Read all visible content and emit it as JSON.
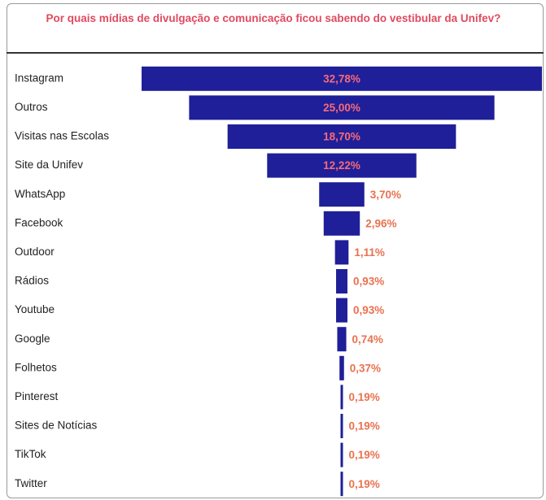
{
  "chart_data": {
    "type": "funnel",
    "title": "Por quais mídias de divulgação e comunicação ficou sabendo do vestibular da Unifev?",
    "categories": [
      "Instagram",
      "Outros",
      "Visitas nas Escolas",
      "Site da Unifev",
      "WhatsApp",
      "Facebook",
      "Outdoor",
      "Rádios",
      "Youtube",
      "Google",
      "Folhetos",
      "Pinterest",
      "Sites de Notícias",
      "TikTok",
      "Twitter"
    ],
    "values": [
      32.78,
      25.0,
      18.7,
      12.22,
      3.7,
      2.96,
      1.11,
      0.93,
      0.93,
      0.74,
      0.37,
      0.19,
      0.19,
      0.19,
      0.19
    ],
    "value_labels": [
      "32,78%",
      "25,00%",
      "18,70%",
      "12,22%",
      "3,70%",
      "2,96%",
      "1,11%",
      "0,93%",
      "0,93%",
      "0,74%",
      "0,37%",
      "0,19%",
      "0,19%",
      "0,19%",
      "0,19%"
    ],
    "color": "#1f1f99"
  }
}
